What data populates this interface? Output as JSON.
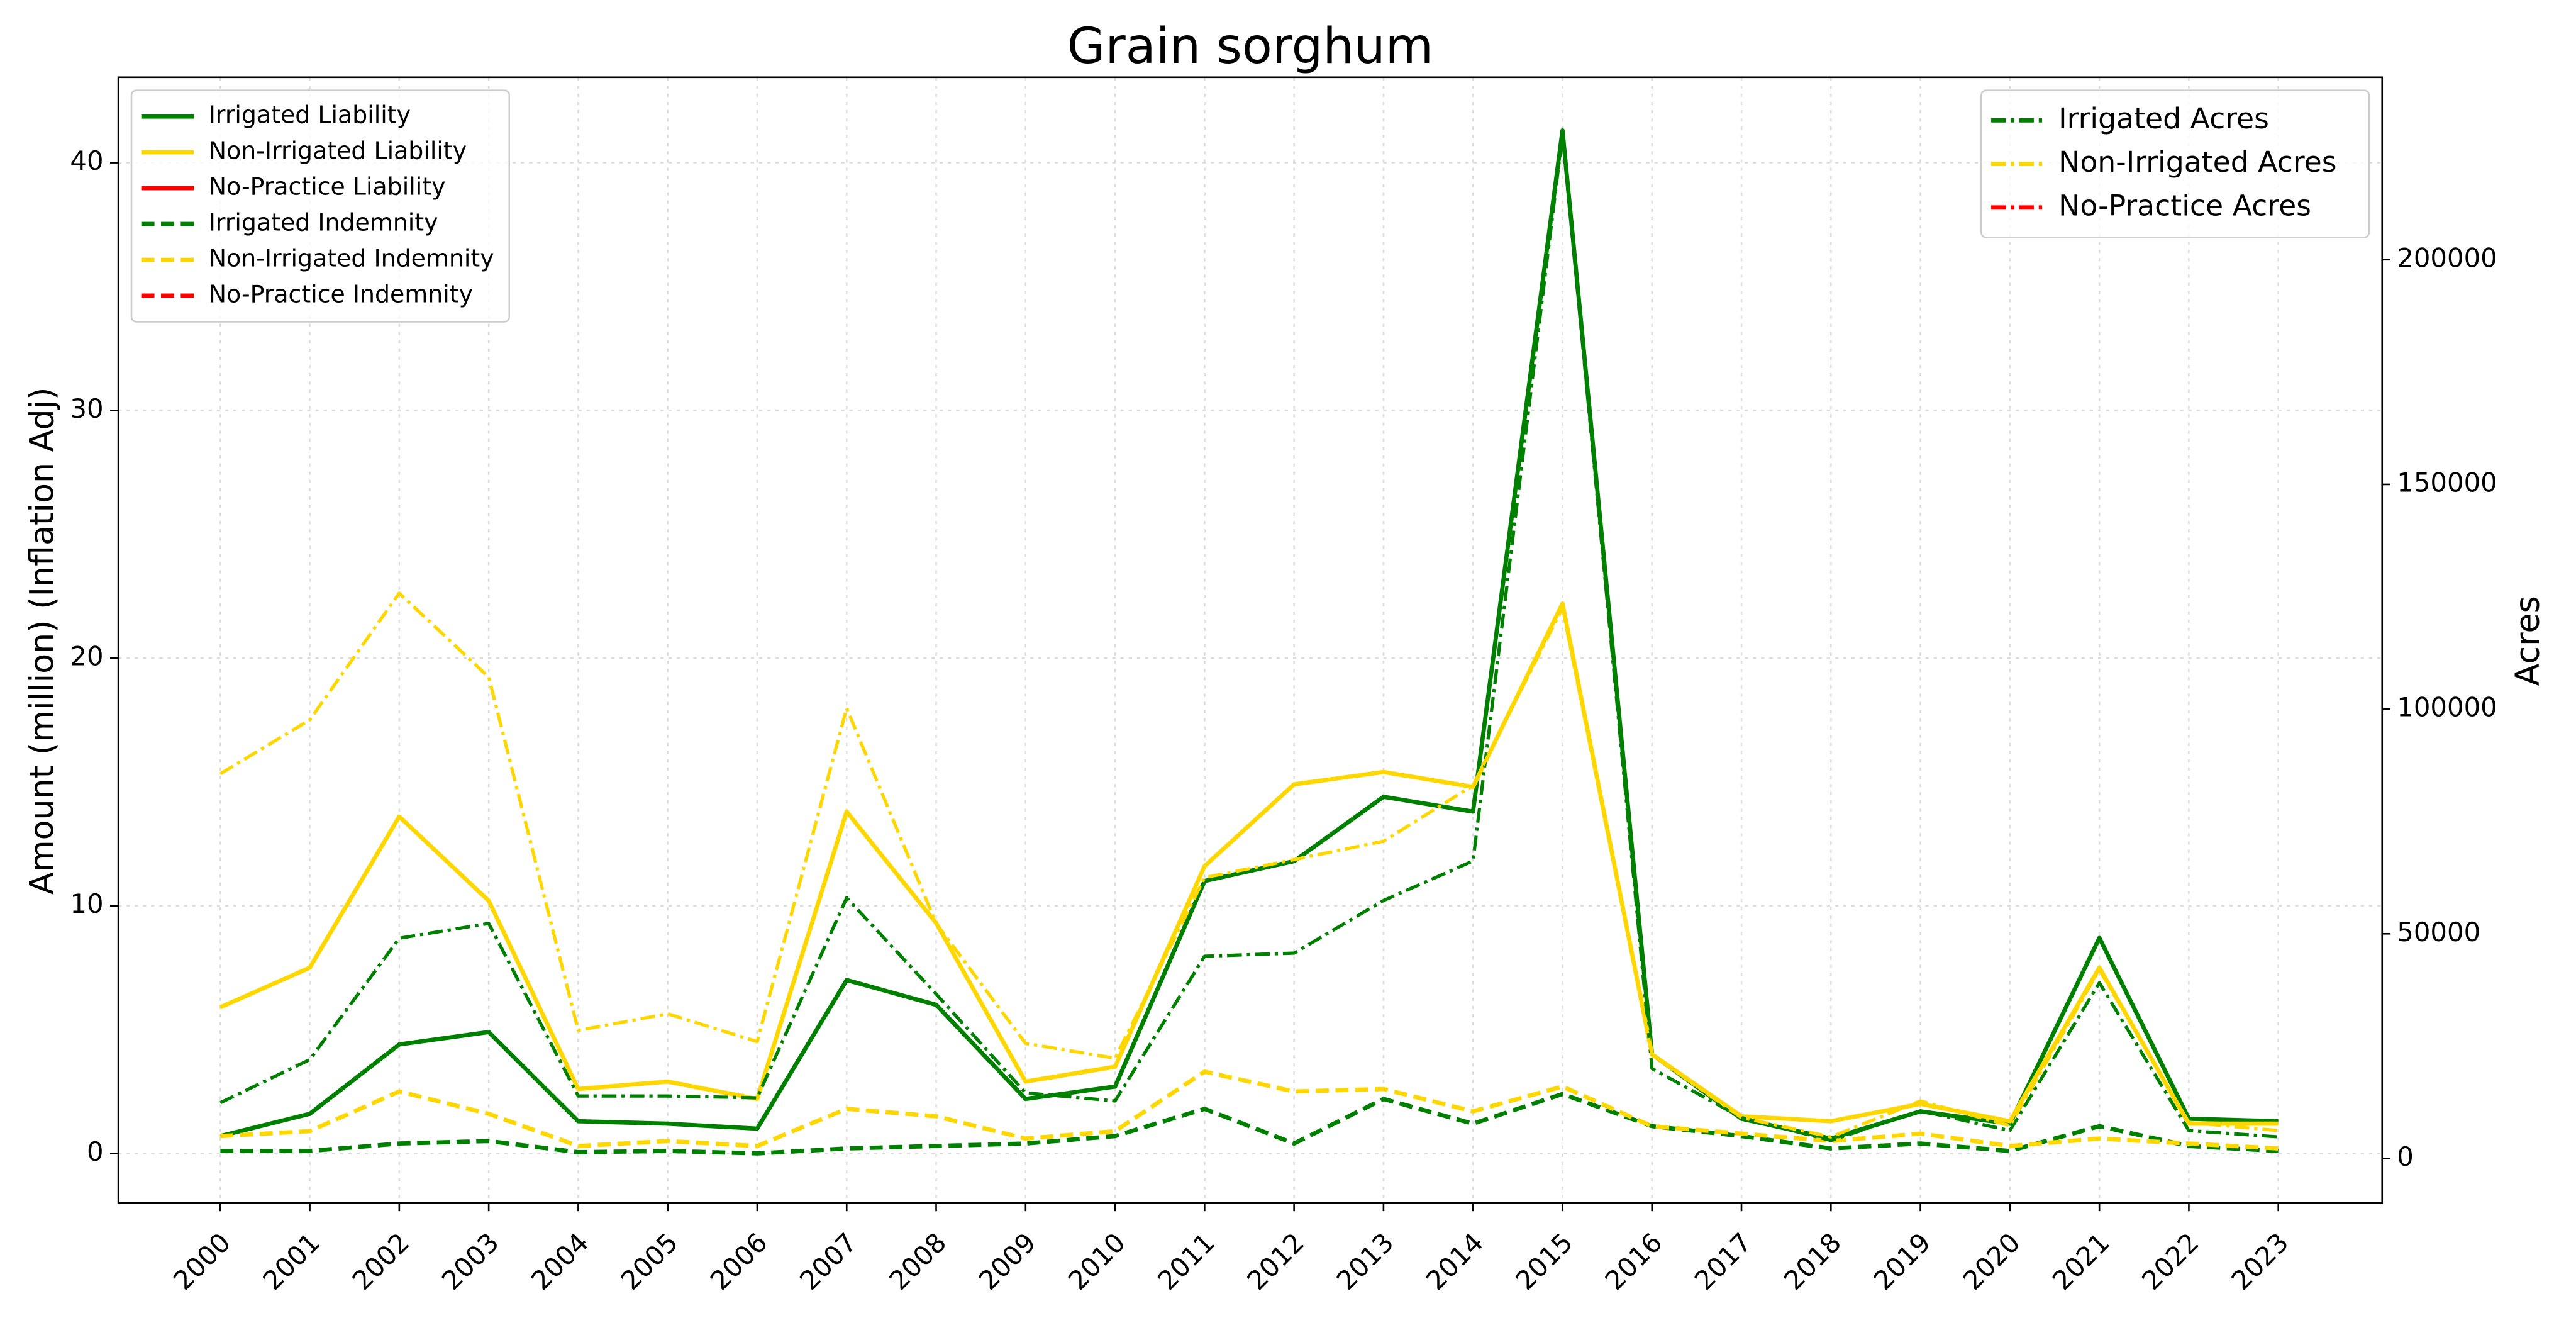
{
  "chart_data": {
    "type": "line",
    "title": "Grain sorghum",
    "ylabel": "Amount (million) (Inflation Adj)",
    "y2label": "Acres",
    "x": [
      2000,
      2001,
      2002,
      2003,
      2004,
      2005,
      2006,
      2007,
      2008,
      2009,
      2010,
      2011,
      2012,
      2013,
      2014,
      2015,
      2016,
      2017,
      2018,
      2019,
      2020,
      2021,
      2022,
      2023
    ],
    "xlim": [
      1998.86,
      2024.16
    ],
    "xticks": [
      2000,
      2001,
      2002,
      2003,
      2004,
      2005,
      2006,
      2007,
      2008,
      2009,
      2010,
      2011,
      2012,
      2013,
      2014,
      2015,
      2016,
      2017,
      2018,
      2019,
      2020,
      2021,
      2022,
      2023
    ],
    "ylim": [
      -2.0,
      43.45
    ],
    "yticks": [
      0,
      10,
      20,
      30,
      40
    ],
    "y2lim": [
      -9900,
      240600
    ],
    "y2ticks": [
      0,
      50000,
      100000,
      150000,
      200000
    ],
    "grid": true,
    "legend": "upper left",
    "legend2": "upper right",
    "series": [
      {
        "name": "Irrigated Liability",
        "color": "#008000",
        "dash": "solid",
        "values": [
          0.7,
          1.6,
          4.4,
          4.9,
          1.3,
          1.2,
          1.0,
          7.0,
          6.0,
          2.2,
          2.7,
          11.0,
          11.8,
          14.4,
          13.8,
          41.3,
          4.0,
          1.4,
          0.6,
          1.7,
          1.2,
          8.7,
          1.4,
          1.3
        ]
      },
      {
        "name": "Non-Irrigated Liability",
        "color": "#ffd700",
        "dash": "solid",
        "values": [
          5.9,
          7.5,
          13.6,
          10.2,
          2.6,
          2.9,
          2.2,
          13.8,
          9.3,
          2.9,
          3.5,
          11.6,
          14.9,
          15.4,
          14.8,
          22.2,
          4.0,
          1.5,
          1.3,
          2.0,
          1.3,
          7.5,
          1.2,
          1.2
        ]
      },
      {
        "name": "No-Practice Liability",
        "color": "#ff0000",
        "dash": "solid",
        "values": [
          null,
          null,
          null,
          null,
          null,
          null,
          null,
          null,
          null,
          null,
          null,
          null,
          null,
          null,
          null,
          null,
          null,
          null,
          null,
          null,
          null,
          null,
          null,
          null
        ]
      },
      {
        "name": "Irrigated Indemnity",
        "color": "#008000",
        "dash": "dashed",
        "values": [
          0.1,
          0.1,
          0.4,
          0.5,
          0.05,
          0.1,
          0.0,
          0.2,
          0.3,
          0.4,
          0.7,
          1.8,
          0.4,
          2.2,
          1.2,
          2.4,
          1.1,
          0.7,
          0.2,
          0.4,
          0.1,
          1.1,
          0.3,
          0.1
        ]
      },
      {
        "name": "Non-Irrigated Indemnity",
        "color": "#ffd700",
        "dash": "dashed",
        "values": [
          0.7,
          0.9,
          2.5,
          1.6,
          0.3,
          0.5,
          0.3,
          1.8,
          1.5,
          0.6,
          0.9,
          3.3,
          2.5,
          2.6,
          1.7,
          2.7,
          1.1,
          0.8,
          0.5,
          0.8,
          0.3,
          0.6,
          0.4,
          0.2
        ]
      },
      {
        "name": "No-Practice Indemnity",
        "color": "#ff0000",
        "dash": "dashed",
        "values": [
          null,
          null,
          null,
          null,
          null,
          null,
          null,
          null,
          null,
          null,
          null,
          null,
          null,
          null,
          null,
          null,
          null,
          null,
          null,
          null,
          null,
          null,
          null,
          null
        ]
      },
      {
        "name": "Irrigated Acres",
        "color": "#008000",
        "dash": "dashdot",
        "axis": "y2",
        "values": [
          12400,
          22000,
          49000,
          52300,
          13900,
          13900,
          13500,
          58000,
          36600,
          14600,
          12800,
          45000,
          45700,
          57400,
          66200,
          227800,
          20000,
          9100,
          4000,
          10600,
          6200,
          39100,
          6200,
          4800
        ]
      },
      {
        "name": "Non-Irrigated Acres",
        "color": "#ffd700",
        "dash": "dashdot",
        "axis": "y2",
        "values": [
          85600,
          97600,
          125800,
          107100,
          28500,
          32200,
          26000,
          100200,
          52300,
          25600,
          22300,
          62500,
          66500,
          70600,
          83000,
          122500,
          23000,
          9100,
          4800,
          12800,
          7300,
          42000,
          8000,
          6200
        ]
      },
      {
        "name": "No-Practice Acres",
        "color": "#ff0000",
        "dash": "dashdot",
        "axis": "y2",
        "values": [
          null,
          null,
          null,
          null,
          null,
          null,
          null,
          null,
          null,
          null,
          null,
          null,
          null,
          null,
          null,
          null,
          null,
          null,
          null,
          null,
          null,
          null,
          null,
          null
        ]
      }
    ]
  }
}
